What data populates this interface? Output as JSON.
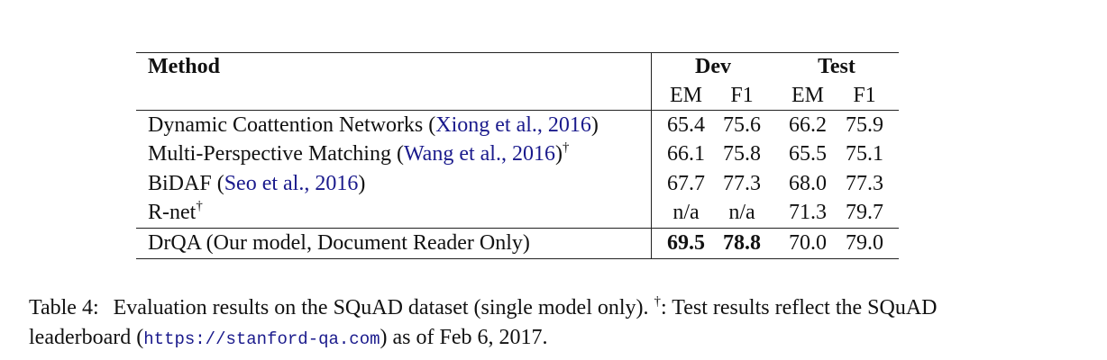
{
  "table": {
    "header": {
      "method": "Method",
      "dev": "Dev",
      "test": "Test",
      "em": "EM",
      "f1": "F1"
    },
    "rows": [
      {
        "method": "Dynamic Coattention Networks (",
        "cite": "Xiong et al., 2016",
        "suffix": ")",
        "dagger": "",
        "dev_em": "65.4",
        "dev_f1": "75.6",
        "test_em": "66.2",
        "test_f1": "75.9"
      },
      {
        "method": "Multi-Perspective Matching (",
        "cite": "Wang et al., 2016",
        "suffix": ")",
        "dagger": "†",
        "dev_em": "66.1",
        "dev_f1": "75.8",
        "test_em": "65.5",
        "test_f1": "75.1"
      },
      {
        "method": "BiDAF (",
        "cite": "Seo et al., 2016",
        "suffix": ")",
        "dagger": "",
        "dev_em": "67.7",
        "dev_f1": "77.3",
        "test_em": "68.0",
        "test_f1": "77.3"
      },
      {
        "method": "R-net",
        "cite": "",
        "suffix": "",
        "dagger": "†",
        "dev_em": "n/a",
        "dev_f1": "n/a",
        "test_em": "71.3",
        "test_f1": "79.7"
      }
    ],
    "ours": {
      "method": "DrQA (Our model, Document Reader Only)",
      "dev_em": "69.5",
      "dev_f1": "78.8",
      "test_em": "70.0",
      "test_f1": "79.0"
    }
  },
  "caption": {
    "label": "Table 4:",
    "text1": "Evaluation results on the SQuAD dataset (single model only).",
    "dagger": "†",
    "text2": ": Test results reflect the SQuAD",
    "text3": "leaderboard (",
    "url": "https://stanford-qa.com",
    "text4": ") as of Feb 6, 2017."
  },
  "colors": {
    "citation": "#1a1a8c",
    "rule": "#222222"
  }
}
